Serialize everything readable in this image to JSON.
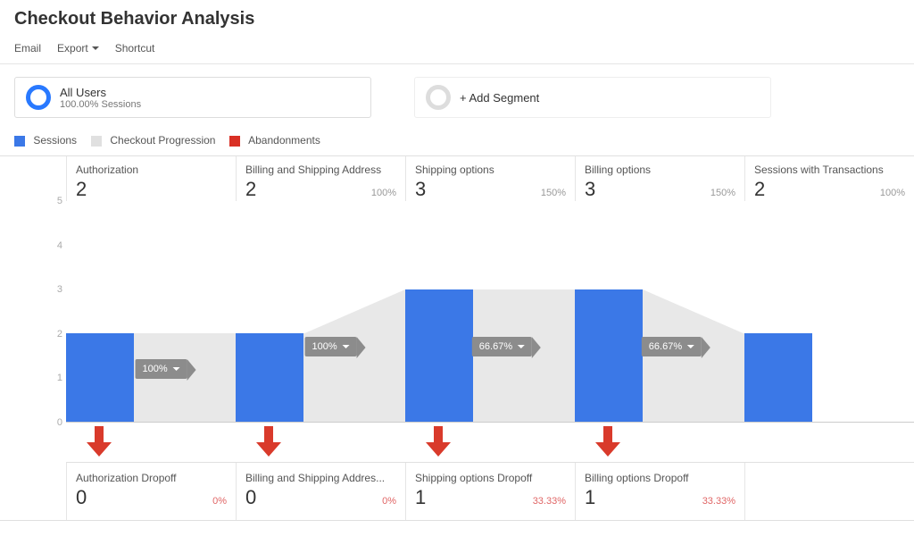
{
  "title": "Checkout Behavior Analysis",
  "toolbar": {
    "email": "Email",
    "export": "Export",
    "shortcut": "Shortcut"
  },
  "segments": {
    "primary": {
      "title": "All Users",
      "sub": "100.00% Sessions"
    },
    "add": {
      "label": "+ Add Segment"
    }
  },
  "legend": {
    "items": [
      {
        "label": "Sessions",
        "color": "#3b78e7"
      },
      {
        "label": "Checkout Progression",
        "color": "#e0e0e0"
      },
      {
        "label": "Abandonments",
        "color": "#d93025"
      }
    ]
  },
  "chart": {
    "y_max": 5,
    "y_ticks": [
      "5",
      "4",
      "3",
      "2",
      "1",
      "0"
    ],
    "bar_color": "#3b78e7",
    "flow_color": "#e8e8e8",
    "steps": [
      {
        "label": "Authorization",
        "value": 2,
        "pct": "",
        "flow_pct": "100%",
        "flow_remain": 2
      },
      {
        "label": "Billing and Shipping Address",
        "value": 2,
        "pct": "100%",
        "flow_pct": "100%",
        "flow_remain": 2
      },
      {
        "label": "Shipping options",
        "value": 3,
        "pct": "150%",
        "flow_pct": "66.67%",
        "flow_remain": 2
      },
      {
        "label": "Billing options",
        "value": 3,
        "pct": "150%",
        "flow_pct": "66.67%",
        "flow_remain": 2
      },
      {
        "label": "Sessions with Transactions",
        "value": 2,
        "pct": "100%",
        "flow_pct": "",
        "flow_remain": 0
      }
    ],
    "dropoffs": [
      {
        "label": "Authorization Dropoff",
        "value": "0",
        "pct": "0%"
      },
      {
        "label": "Billing and Shipping Addres...",
        "value": "0",
        "pct": "0%"
      },
      {
        "label": "Shipping options Dropoff",
        "value": "1",
        "pct": "33.33%"
      },
      {
        "label": "Billing options Dropoff",
        "value": "1",
        "pct": "33.33%"
      }
    ]
  }
}
